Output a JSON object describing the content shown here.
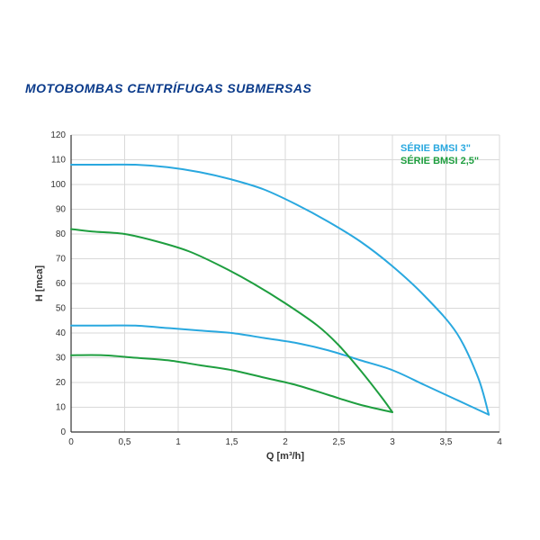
{
  "title": "MOTOBOMBAS CENTRÍFUGAS SUBMERSAS",
  "title_color": "#0a3a8a",
  "title_fontsize": 14,
  "chart": {
    "type": "line",
    "background_color": "#ffffff",
    "grid_color": "#d9d9d9",
    "axis_color": "#333333",
    "xlabel": "Q [m³/h]",
    "ylabel": "H [mca]",
    "label_fontsize": 11,
    "tick_fontsize": 10,
    "xlim": [
      0,
      4
    ],
    "ylim": [
      0,
      120
    ],
    "xtick_step": 0.5,
    "ytick_step": 10,
    "xticks": [
      0,
      0.5,
      1,
      1.5,
      2,
      2.5,
      3,
      3.5,
      4
    ],
    "xtick_labels": [
      "0",
      "0,5",
      "1",
      "1,5",
      "2",
      "2,5",
      "3",
      "3,5",
      "4"
    ],
    "yticks": [
      0,
      10,
      20,
      30,
      40,
      50,
      60,
      70,
      80,
      90,
      100,
      110,
      120
    ],
    "line_width": 2,
    "legend": {
      "position": "top-right",
      "items": [
        {
          "label": "SÉRIE BMSI 3\"",
          "color": "#29a8df"
        },
        {
          "label": "SÉRIE BMSI 2,5\"",
          "color": "#1e9e3f"
        }
      ]
    },
    "series": [
      {
        "name": "bmsi3-upper",
        "color": "#29a8df",
        "points": [
          [
            0.0,
            108
          ],
          [
            0.3,
            108
          ],
          [
            0.6,
            108
          ],
          [
            0.9,
            107
          ],
          [
            1.2,
            105
          ],
          [
            1.5,
            102
          ],
          [
            1.8,
            98
          ],
          [
            2.1,
            92
          ],
          [
            2.4,
            85
          ],
          [
            2.7,
            77
          ],
          [
            3.0,
            67
          ],
          [
            3.3,
            55
          ],
          [
            3.6,
            40
          ],
          [
            3.8,
            22
          ],
          [
            3.9,
            7
          ]
        ]
      },
      {
        "name": "bmsi3-lower",
        "color": "#29a8df",
        "points": [
          [
            0.0,
            43
          ],
          [
            0.3,
            43
          ],
          [
            0.6,
            43
          ],
          [
            0.9,
            42
          ],
          [
            1.2,
            41
          ],
          [
            1.5,
            40
          ],
          [
            1.8,
            38
          ],
          [
            2.1,
            36
          ],
          [
            2.4,
            33
          ],
          [
            2.7,
            29
          ],
          [
            3.0,
            25
          ],
          [
            3.3,
            19
          ],
          [
            3.6,
            13
          ],
          [
            3.9,
            7
          ]
        ]
      },
      {
        "name": "bmsi25-upper",
        "color": "#1e9e3f",
        "points": [
          [
            0.0,
            82
          ],
          [
            0.2,
            81
          ],
          [
            0.5,
            80
          ],
          [
            0.8,
            77
          ],
          [
            1.1,
            73
          ],
          [
            1.4,
            67
          ],
          [
            1.7,
            60
          ],
          [
            2.0,
            52
          ],
          [
            2.3,
            43
          ],
          [
            2.5,
            35
          ],
          [
            2.7,
            25
          ],
          [
            2.9,
            14
          ],
          [
            3.0,
            8
          ]
        ]
      },
      {
        "name": "bmsi25-lower",
        "color": "#1e9e3f",
        "points": [
          [
            0.0,
            31
          ],
          [
            0.3,
            31
          ],
          [
            0.6,
            30
          ],
          [
            0.9,
            29
          ],
          [
            1.2,
            27
          ],
          [
            1.5,
            25
          ],
          [
            1.8,
            22
          ],
          [
            2.1,
            19
          ],
          [
            2.4,
            15
          ],
          [
            2.7,
            11
          ],
          [
            3.0,
            8
          ]
        ]
      }
    ]
  }
}
